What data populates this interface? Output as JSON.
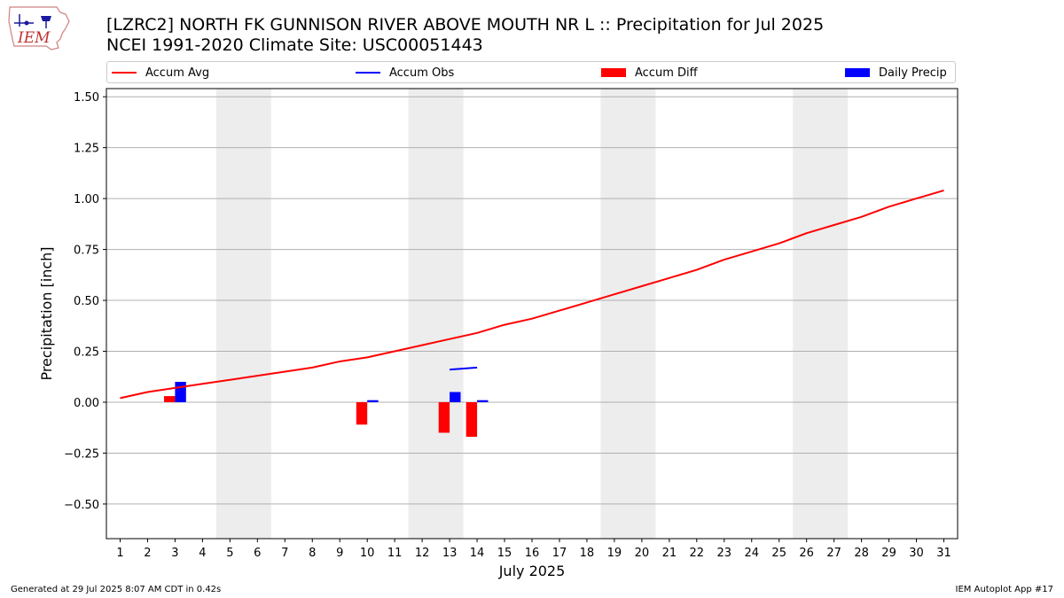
{
  "header": {
    "logo_text": "IEM",
    "title_line1": "[LZRC2] NORTH FK GUNNISON RIVER ABOVE MOUTH NR L :: Precipitation for Jul 2025",
    "title_line2": "NCEI 1991-2020 Climate Site: USC00051443"
  },
  "legend": {
    "accum_avg": "Accum Avg",
    "accum_obs": "Accum Obs",
    "accum_diff": "Accum Diff",
    "daily_precip": "Daily Precip"
  },
  "footer": {
    "left": "Generated at 29 Jul 2025 8:07 AM CDT in 0.42s",
    "right": "IEM Autoplot App #17"
  },
  "colors": {
    "avg": "#ff0000",
    "obs": "#0000ff",
    "diff": "#ff0000",
    "precip": "#0000ff",
    "weekend_band": "#ededed",
    "grid": "#b0b0b0"
  },
  "chart_data": {
    "type": "bar",
    "xlabel": "July 2025",
    "ylabel": "Precipitation [inch]",
    "xlim": [
      0.5,
      31.5
    ],
    "ylim": [
      -0.67,
      1.54
    ],
    "yticks": [
      -0.5,
      -0.25,
      0.0,
      0.25,
      0.5,
      0.75,
      1.0,
      1.25,
      1.5
    ],
    "ytick_labels": [
      "−0.50",
      "−0.25",
      "0.00",
      "0.25",
      "0.50",
      "0.75",
      "1.00",
      "1.25",
      "1.50"
    ],
    "days": [
      1,
      2,
      3,
      4,
      5,
      6,
      7,
      8,
      9,
      10,
      11,
      12,
      13,
      14,
      15,
      16,
      17,
      18,
      19,
      20,
      21,
      22,
      23,
      24,
      25,
      26,
      27,
      28,
      29,
      30,
      31
    ],
    "weekend_bands": [
      [
        4.5,
        6.5
      ],
      [
        11.5,
        13.5
      ],
      [
        18.5,
        20.5
      ],
      [
        25.5,
        27.5
      ]
    ],
    "grid": "y",
    "legend_placement": "top, above plot",
    "series": [
      {
        "name": "Accum Avg",
        "kind": "line",
        "x": [
          1,
          2,
          3,
          4,
          5,
          6,
          7,
          8,
          9,
          10,
          11,
          12,
          13,
          14,
          15,
          16,
          17,
          18,
          19,
          20,
          21,
          22,
          23,
          24,
          25,
          26,
          27,
          28,
          29,
          30,
          31
        ],
        "values": [
          0.02,
          0.05,
          0.07,
          0.09,
          0.11,
          0.13,
          0.15,
          0.17,
          0.2,
          0.22,
          0.25,
          0.28,
          0.31,
          0.34,
          0.38,
          0.41,
          0.45,
          0.49,
          0.53,
          0.57,
          0.61,
          0.65,
          0.7,
          0.74,
          0.78,
          0.83,
          0.87,
          0.91,
          0.96,
          1.0,
          1.04
        ]
      },
      {
        "name": "Accum Obs",
        "kind": "line",
        "x": [
          13,
          14
        ],
        "values": [
          0.16,
          0.17
        ]
      },
      {
        "name": "Accum Diff",
        "kind": "bar",
        "x": [
          3,
          10,
          13,
          14
        ],
        "values": [
          0.03,
          -0.11,
          -0.15,
          -0.17
        ]
      },
      {
        "name": "Daily Precip",
        "kind": "bar",
        "x": [
          3,
          10,
          13,
          14
        ],
        "values": [
          0.1,
          0.01,
          0.05,
          0.01
        ]
      }
    ]
  }
}
